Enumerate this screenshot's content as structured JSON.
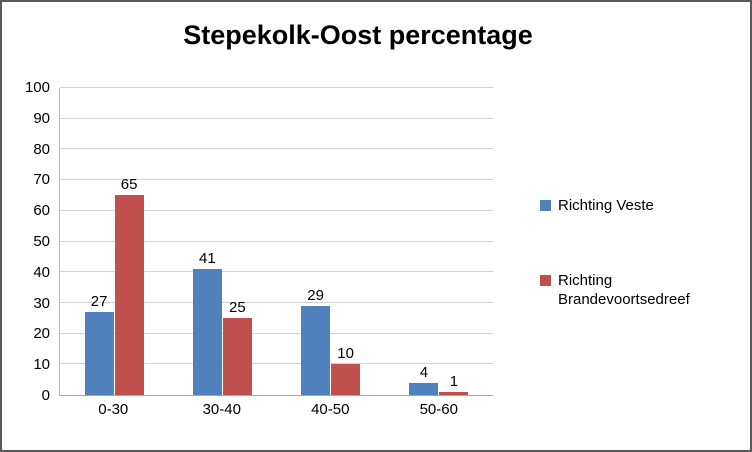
{
  "chart_data": {
    "type": "bar",
    "title": "Stepekolk-Oost percentage",
    "categories": [
      "0-30",
      "30-40",
      "40-50",
      "50-60"
    ],
    "series": [
      {
        "name": "Richting Veste",
        "color": "#4F81BD",
        "values": [
          27,
          41,
          29,
          4
        ]
      },
      {
        "name": "Richting Brandevoortsedreef",
        "color": "#C0504D",
        "values": [
          65,
          25,
          10,
          1
        ]
      }
    ],
    "xlabel": "",
    "ylabel": "",
    "ylim": [
      0,
      100
    ],
    "ytick_step": 10,
    "grid": "horizontal",
    "legend_position": "right",
    "colors": {
      "gridline": "#d3d3d3",
      "axis_line": "#a6a6a6",
      "frame_border": "#595959",
      "text": "#000000"
    }
  }
}
